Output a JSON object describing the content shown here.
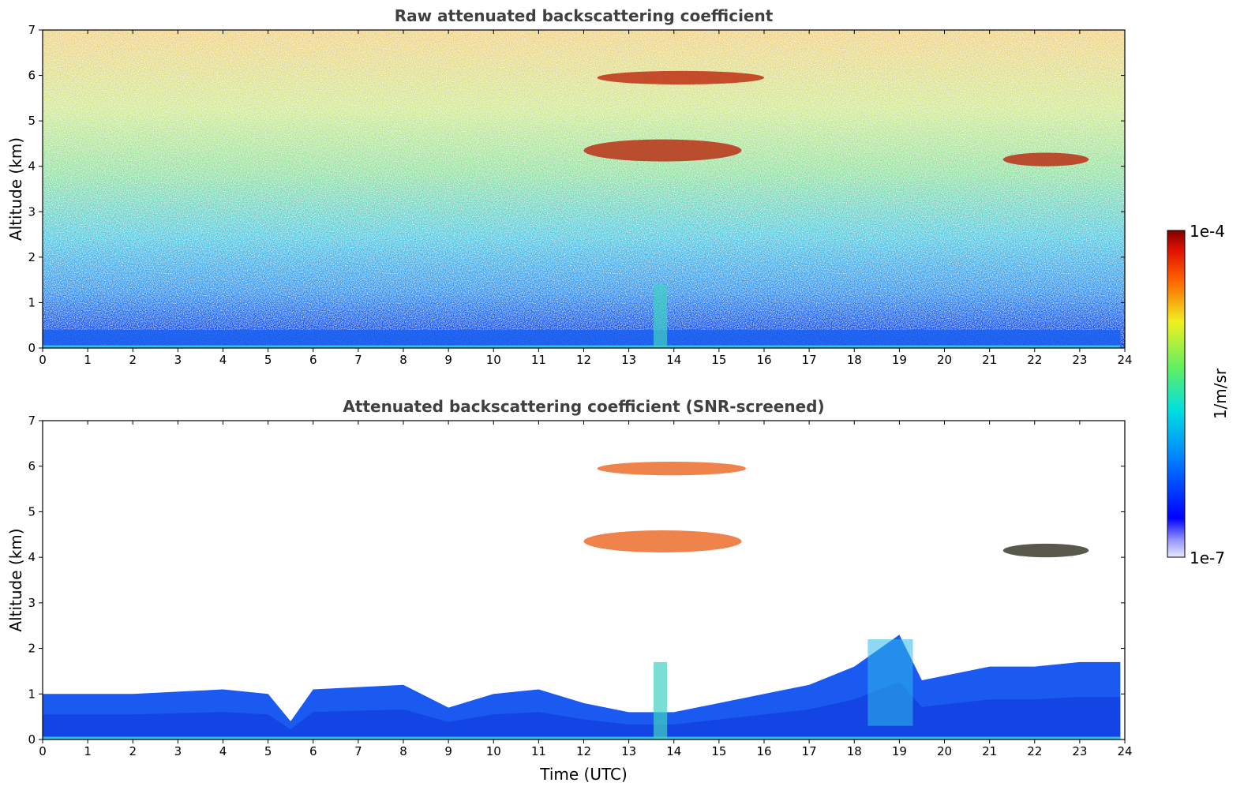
{
  "chart_data": [
    {
      "type": "heatmap",
      "title": "Raw attenuated backscattering coefficient",
      "xlabel": "",
      "ylabel": "Altitude (km)",
      "xlim": [
        0,
        24
      ],
      "ylim": [
        0,
        7
      ],
      "x_ticks": [
        "0",
        "1",
        "2",
        "3",
        "4",
        "5",
        "6",
        "7",
        "8",
        "9",
        "10",
        "11",
        "12",
        "13",
        "14",
        "15",
        "16",
        "17",
        "18",
        "19",
        "20",
        "21",
        "22",
        "23",
        "24"
      ],
      "y_ticks": [
        "0",
        "1",
        "2",
        "3",
        "4",
        "5",
        "6",
        "7"
      ],
      "features": [
        {
          "kind": "boundary_layer",
          "x_range": [
            0,
            23.9
          ],
          "top_km": 0.4
        },
        {
          "kind": "cloud",
          "x_range": [
            12.0,
            15.5
          ],
          "altitude_km": [
            3.9,
            4.8
          ]
        },
        {
          "kind": "cloud",
          "x_range": [
            12.3,
            16.0
          ],
          "altitude_km": [
            5.8,
            6.1
          ]
        },
        {
          "kind": "cloud",
          "x_range": [
            21.3,
            23.2
          ],
          "altitude_km": [
            4.0,
            4.3
          ]
        }
      ]
    },
    {
      "type": "heatmap",
      "title": "Attenuated backscattering coefficient (SNR-screened)",
      "xlabel": "Time (UTC)",
      "ylabel": "Altitude (km)",
      "xlim": [
        0,
        24
      ],
      "ylim": [
        0,
        7
      ],
      "x_ticks": [
        "0",
        "1",
        "2",
        "3",
        "4",
        "5",
        "6",
        "7",
        "8",
        "9",
        "10",
        "11",
        "12",
        "13",
        "14",
        "15",
        "16",
        "17",
        "18",
        "19",
        "20",
        "21",
        "22",
        "23",
        "24"
      ],
      "y_ticks": [
        "0",
        "1",
        "2",
        "3",
        "4",
        "5",
        "6",
        "7"
      ],
      "boundary_layer_top_km": [
        {
          "t": 0,
          "h": 1.0
        },
        {
          "t": 2,
          "h": 1.0
        },
        {
          "t": 4,
          "h": 1.1
        },
        {
          "t": 5,
          "h": 1.0
        },
        {
          "t": 5.5,
          "h": 0.4
        },
        {
          "t": 6,
          "h": 1.1
        },
        {
          "t": 8,
          "h": 1.2
        },
        {
          "t": 9,
          "h": 0.7
        },
        {
          "t": 10,
          "h": 1.0
        },
        {
          "t": 11,
          "h": 1.1
        },
        {
          "t": 12,
          "h": 0.8
        },
        {
          "t": 13,
          "h": 0.6
        },
        {
          "t": 14,
          "h": 0.6
        },
        {
          "t": 15,
          "h": 0.8
        },
        {
          "t": 16,
          "h": 1.0
        },
        {
          "t": 17,
          "h": 1.2
        },
        {
          "t": 18,
          "h": 1.6
        },
        {
          "t": 19,
          "h": 2.3
        },
        {
          "t": 19.5,
          "h": 1.3
        },
        {
          "t": 21,
          "h": 1.6
        },
        {
          "t": 22,
          "h": 1.6
        },
        {
          "t": 23,
          "h": 1.7
        },
        {
          "t": 23.9,
          "h": 1.7
        }
      ],
      "features": [
        {
          "kind": "cloud",
          "x_range": [
            12.0,
            15.5
          ],
          "altitude_km": [
            3.9,
            4.8
          ]
        },
        {
          "kind": "cloud",
          "x_range": [
            12.3,
            15.6
          ],
          "altitude_km": [
            5.8,
            6.1
          ]
        },
        {
          "kind": "cloud",
          "x_range": [
            21.3,
            23.2
          ],
          "altitude_km": [
            4.0,
            4.3
          ]
        }
      ]
    }
  ],
  "colorbar": {
    "max_label": "1e-4",
    "min_label": "1e-7",
    "unit_label": "1/m/sr",
    "colormap": "jet"
  }
}
